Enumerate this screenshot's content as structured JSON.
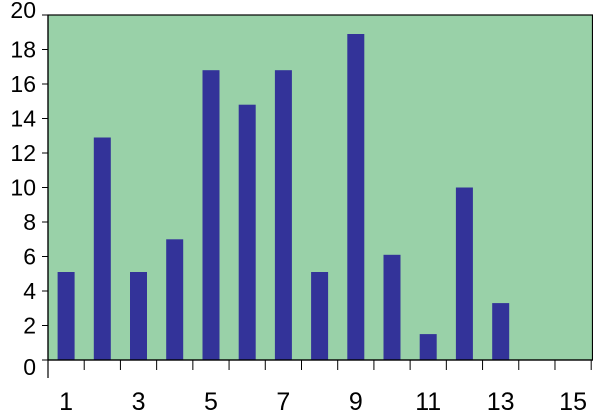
{
  "chart_data": {
    "type": "bar",
    "title": "",
    "xlabel": "",
    "ylabel": "",
    "categories": [
      1,
      2,
      3,
      4,
      5,
      6,
      7,
      8,
      9,
      10,
      11,
      12,
      13,
      14,
      15
    ],
    "values": [
      5.1,
      12.9,
      5.1,
      7.0,
      16.8,
      14.8,
      16.8,
      5.1,
      18.9,
      6.1,
      1.5,
      10.0,
      3.3,
      0,
      0
    ],
    "x_tick_labels": [
      "1",
      "3",
      "5",
      "7",
      "9",
      "11",
      "13",
      "15"
    ],
    "y_tick_labels": [
      "0",
      "2",
      "4",
      "6",
      "8",
      "10",
      "12",
      "14",
      "16",
      "18",
      "20"
    ],
    "ylim": [
      0,
      20
    ],
    "grid": false,
    "legend": "none",
    "colors": {
      "plot_background": "#99d1a8",
      "bar": "#333399",
      "axis": "#000000"
    }
  }
}
